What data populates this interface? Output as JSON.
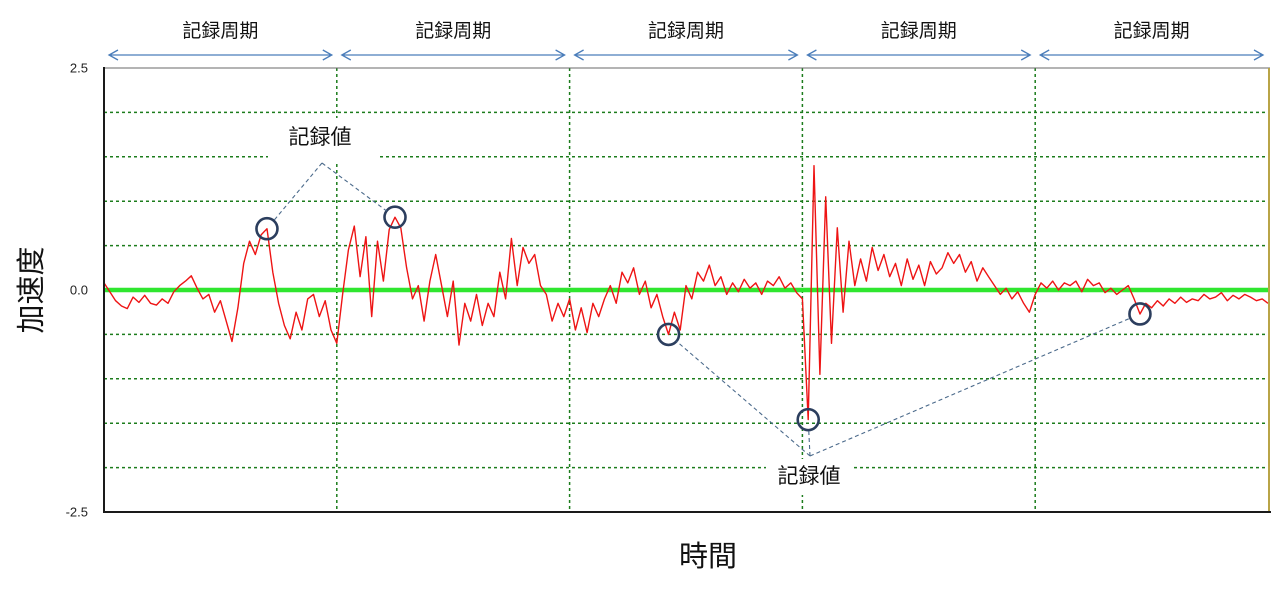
{
  "chart_data": {
    "type": "line",
    "xlabel": "時間",
    "ylabel": "加速度",
    "ylim": [
      -2.5,
      2.5
    ],
    "ytick_labels": [
      "2.5",
      "0.0",
      "-2.5"
    ],
    "ygrid_step": 0.5,
    "grid": true,
    "recording_periods": [
      {
        "label": "記録周期"
      },
      {
        "label": "記録周期"
      },
      {
        "label": "記録周期"
      },
      {
        "label": "記録周期"
      },
      {
        "label": "記録周期"
      }
    ],
    "series": [
      {
        "values": [
          0.08,
          -0.02,
          -0.12,
          -0.18,
          -0.21,
          -0.08,
          -0.14,
          -0.06,
          -0.15,
          -0.17,
          -0.1,
          -0.15,
          -0.02,
          0.05,
          0.1,
          0.16,
          0.02,
          -0.1,
          -0.05,
          -0.25,
          -0.12,
          -0.35,
          -0.58,
          -0.2,
          0.3,
          0.55,
          0.4,
          0.62,
          0.69,
          0.2,
          -0.15,
          -0.4,
          -0.55,
          -0.25,
          -0.45,
          -0.1,
          -0.05,
          -0.3,
          -0.12,
          -0.45,
          -0.6,
          -0.05,
          0.45,
          0.72,
          0.15,
          0.6,
          -0.3,
          0.55,
          0.1,
          0.68,
          0.82,
          0.7,
          0.25,
          -0.1,
          0.05,
          -0.35,
          0.1,
          0.4,
          0.05,
          -0.3,
          0.1,
          -0.62,
          -0.15,
          -0.35,
          -0.05,
          -0.4,
          -0.15,
          -0.3,
          0.2,
          -0.1,
          0.58,
          0.05,
          0.48,
          0.3,
          0.4,
          0.05,
          -0.05,
          -0.35,
          -0.15,
          -0.3,
          -0.1,
          -0.45,
          -0.2,
          -0.48,
          -0.15,
          -0.3,
          -0.1,
          0.05,
          -0.15,
          0.2,
          0.08,
          0.25,
          -0.05,
          0.1,
          -0.2,
          -0.05,
          -0.3,
          -0.5,
          -0.25,
          -0.45,
          0.05,
          -0.1,
          0.2,
          0.1,
          0.28,
          0.05,
          0.15,
          -0.05,
          0.08,
          -0.02,
          0.12,
          0.02,
          0.08,
          -0.05,
          0.1,
          0.05,
          0.15,
          0.02,
          0.08,
          -0.03,
          -0.1,
          -1.46,
          1.4,
          -0.95,
          1.05,
          -0.6,
          0.7,
          -0.25,
          0.55,
          0.05,
          0.35,
          0.1,
          0.48,
          0.22,
          0.4,
          0.15,
          0.3,
          0.05,
          0.35,
          0.12,
          0.28,
          0.05,
          0.32,
          0.18,
          0.25,
          0.42,
          0.3,
          0.4,
          0.2,
          0.32,
          0.1,
          0.25,
          0.15,
          0.05,
          -0.05,
          0.02,
          -0.1,
          -0.02,
          -0.15,
          -0.25,
          -0.05,
          0.08,
          0.02,
          0.1,
          0.0,
          0.08,
          0.05,
          0.1,
          -0.02,
          0.12,
          0.05,
          0.08,
          -0.03,
          0.02,
          -0.05,
          0.0,
          0.05,
          -0.1,
          -0.27,
          -0.15,
          -0.2,
          -0.12,
          -0.18,
          -0.1,
          -0.15,
          -0.08,
          -0.14,
          -0.1,
          -0.12,
          -0.05,
          -0.1,
          -0.08,
          -0.03,
          -0.12,
          -0.06,
          -0.1,
          -0.05,
          -0.08,
          -0.12,
          -0.1,
          -0.15
        ]
      }
    ],
    "recorded_values": [
      {
        "index": 28,
        "value": 0.69
      },
      {
        "index": 50,
        "value": 0.82
      },
      {
        "index": 97,
        "value": -0.5
      },
      {
        "index": 121,
        "value": -1.46
      },
      {
        "index": 178,
        "value": -0.27
      }
    ],
    "callout_labels": [
      "記録値",
      "記録値"
    ]
  },
  "colors": {
    "series": "#ee1414",
    "zero_line": "#2fe62f",
    "grid": "#1c7c1c",
    "marker": "#2c3e5e",
    "period_arrow": "#4a7dba",
    "callout_line": "#4b6a8b",
    "plot_right_edge": "#b9a447"
  }
}
